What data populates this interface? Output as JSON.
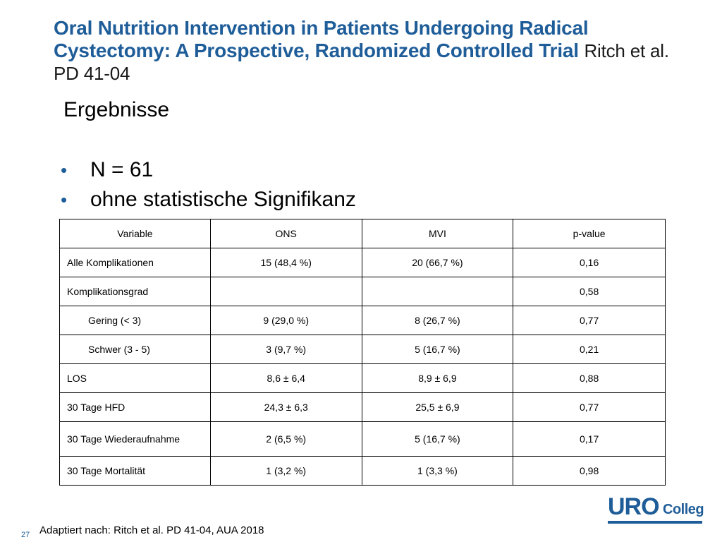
{
  "slide": {
    "title_main": "Oral Nutrition Intervention in Patients Undergoing Radical Cystectomy: A Prospective, Randomized Controlled Trial",
    "title_tail": "Ritch et al. PD 41-04",
    "subtitle": "Ergebnisse",
    "bullets": [
      "N = 61",
      "ohne statistische Signifikanz"
    ],
    "bullet_glyph": "•",
    "page_number": "27",
    "footnote": "Adaptiert nach: Ritch et al. PD 41-04, AUA 2018",
    "logo_main": "URO",
    "logo_sub": "Colleg"
  },
  "table": {
    "headers": [
      "Variable",
      "ONS",
      "MVI",
      "p-value"
    ],
    "rows": [
      [
        "Alle Komplikationen",
        "15 (48,4 %)",
        "20 (66,7 %)",
        "0,16"
      ],
      [
        "Komplikationsgrad",
        "",
        "",
        "0,58"
      ],
      [
        "Gering (< 3)",
        "9 (29,0 %)",
        "8 (26,7 %)",
        "0,77"
      ],
      [
        "Schwer (3 - 5)",
        "3 (9,7 %)",
        "5 (16,7 %)",
        "0,21"
      ],
      [
        "LOS",
        "8,6 ± 6,4",
        "8,9 ± 6,9",
        "0,88"
      ],
      [
        "30 Tage HFD",
        "24,3 ± 6,3",
        "25,5 ± 6,9",
        "0,77"
      ],
      [
        "30 Tage Wiederaufnahme",
        "2 (6,5 %)",
        "5 (16,7 %)",
        "0,17"
      ],
      [
        "30 Tage Mortalität",
        "1 (3,2 %)",
        "1 (3,3 %)",
        "0,98"
      ]
    ]
  },
  "colors": {
    "accent_blue": "#1f5d99"
  }
}
